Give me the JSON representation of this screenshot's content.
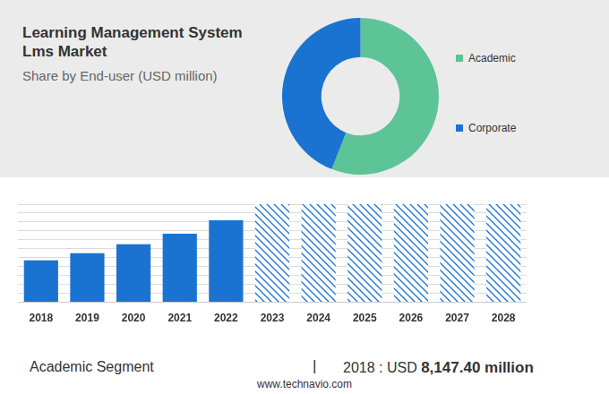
{
  "chart_data": [
    {
      "type": "doughnut",
      "title": "Learning Management System Lms Market",
      "subtitle": "Share by End-user (USD million)",
      "categories": [
        "Academic",
        "Corporate"
      ],
      "values": [
        56,
        44
      ],
      "colors": [
        "#5cc496",
        "#1a73d1"
      ],
      "legend": "right"
    },
    {
      "type": "bar",
      "categories": [
        "2018",
        "2019",
        "2020",
        "2021",
        "2022",
        "2023",
        "2024",
        "2025",
        "2026",
        "2027",
        "2028"
      ],
      "series": [
        {
          "values": [
            47,
            55,
            65,
            77,
            92,
            null,
            null,
            null,
            null,
            null,
            null
          ],
          "color": "#1a73d1"
        },
        {
          "values": [
            null,
            null,
            null,
            null,
            null,
            110,
            110,
            110,
            110,
            110,
            110
          ],
          "color": "#1a73d1",
          "line_style": "hatched"
        }
      ],
      "ylim": [
        0,
        110
      ],
      "yticks": [
        0,
        10,
        20,
        30,
        40,
        50,
        60,
        70,
        80,
        90,
        100,
        110
      ],
      "grid": true,
      "tick_labels": "x"
    }
  ],
  "footer": {
    "label": "Academic Segment",
    "separator": "|",
    "year_text": "2018 : USD",
    "value_text": "8,147.40 million"
  },
  "source": "www.technavio.com"
}
